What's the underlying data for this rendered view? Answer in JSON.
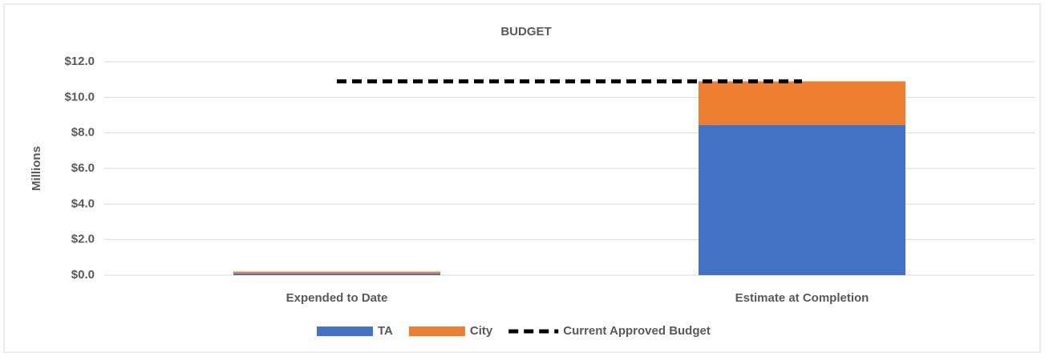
{
  "chart_data": {
    "type": "stacked_bar",
    "title": "BUDGET",
    "y_label": "Millions",
    "categories": [
      "Expended to Date",
      "Estimate at Completion"
    ],
    "series": [
      {
        "name": "TA",
        "color": "#4472c4",
        "values": [
          0.1,
          8.45
        ]
      },
      {
        "name": "City",
        "color": "#ed7d31",
        "values": [
          0.1,
          2.45
        ]
      },
      {
        "name": "Current Approved Budget",
        "color": "#000000",
        "type": "line",
        "dashed": true,
        "values": [
          10.9,
          10.9
        ]
      }
    ],
    "ylim": [
      0,
      12
    ],
    "yticks": [
      {
        "value": 0,
        "label": "$0.0"
      },
      {
        "value": 2,
        "label": "$2.0"
      },
      {
        "value": 4,
        "label": "$4.0"
      },
      {
        "value": 6,
        "label": "$6.0"
      },
      {
        "value": 8,
        "label": "$8.0"
      },
      {
        "value": 10,
        "label": "$10.0"
      },
      {
        "value": 12,
        "label": "$12.0"
      }
    ],
    "grid": true,
    "legend": "bottom"
  }
}
